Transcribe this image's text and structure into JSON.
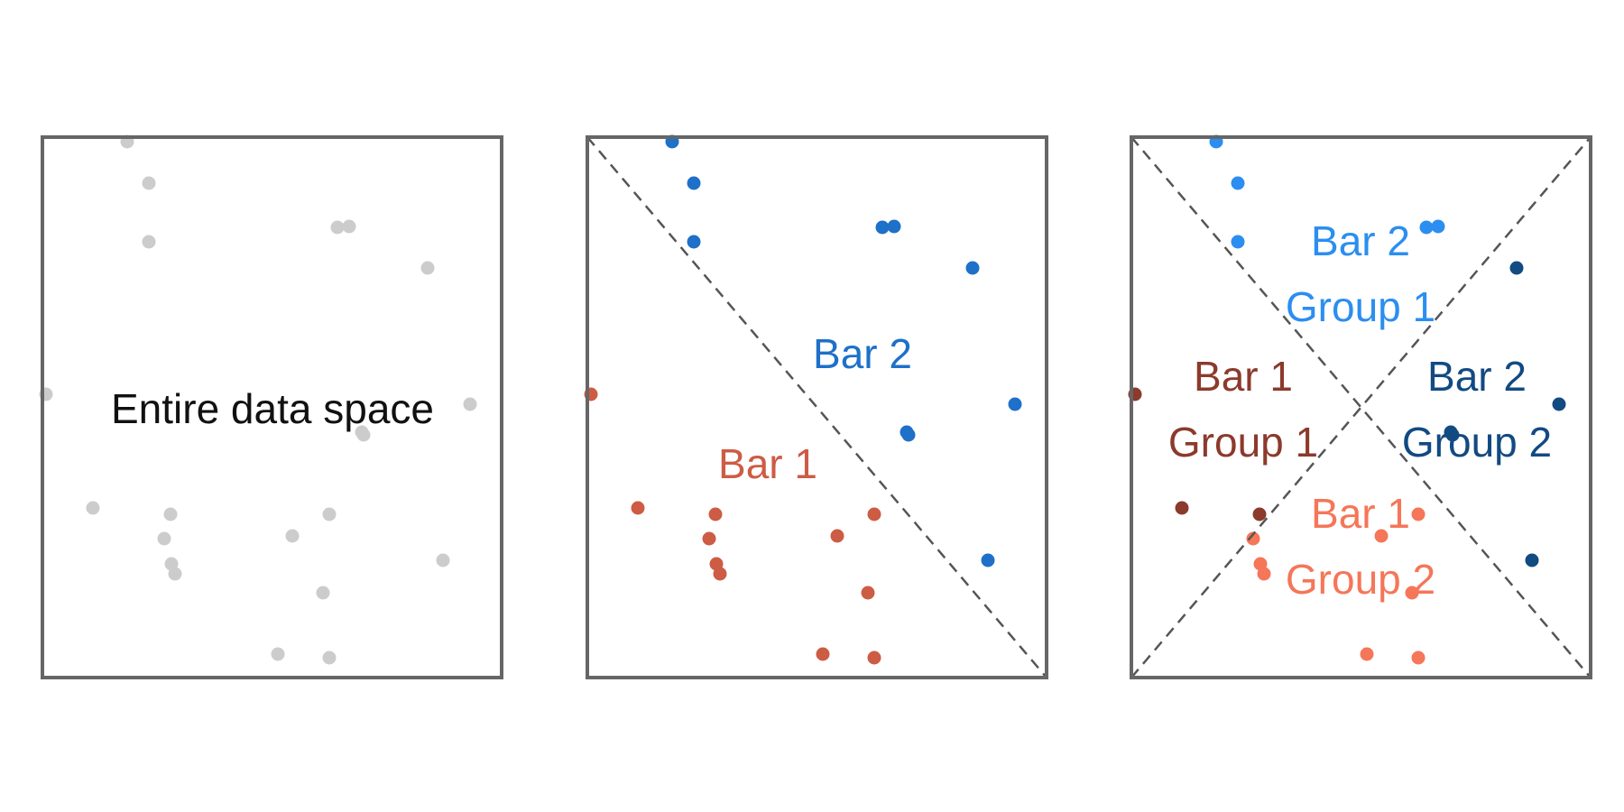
{
  "colors": {
    "frame": "#666666",
    "divider": "#555555",
    "grey_point": "#cccccc",
    "label_black": "#111111",
    "bar1": "#cd5c45",
    "bar2": "#1e70c8",
    "bar1_group1": "#8b3a2c",
    "bar1_group2": "#f57658",
    "bar2_group1": "#2b8ef0",
    "bar2_group2": "#124a82"
  },
  "panels": [
    {
      "id": "whole",
      "labels": [
        {
          "line1": "Entire data space",
          "line2": "",
          "color": "label_black"
        }
      ]
    },
    {
      "id": "bars",
      "labels": [
        {
          "line1": "Bar 2",
          "line2": "",
          "color": "bar2"
        },
        {
          "line1": "Bar 1",
          "line2": "",
          "color": "bar1"
        }
      ]
    },
    {
      "id": "groups",
      "labels": [
        {
          "line1": "Bar 2",
          "line2": "Group 1",
          "color": "bar2_group1"
        },
        {
          "line1": "Bar 1",
          "line2": "Group 1",
          "color": "bar1_group1"
        },
        {
          "line1": "Bar 2",
          "line2": "Group 2",
          "color": "bar2_group2"
        },
        {
          "line1": "Bar 1",
          "line2": "Group 2",
          "color": "bar1_group2"
        }
      ]
    }
  ]
}
